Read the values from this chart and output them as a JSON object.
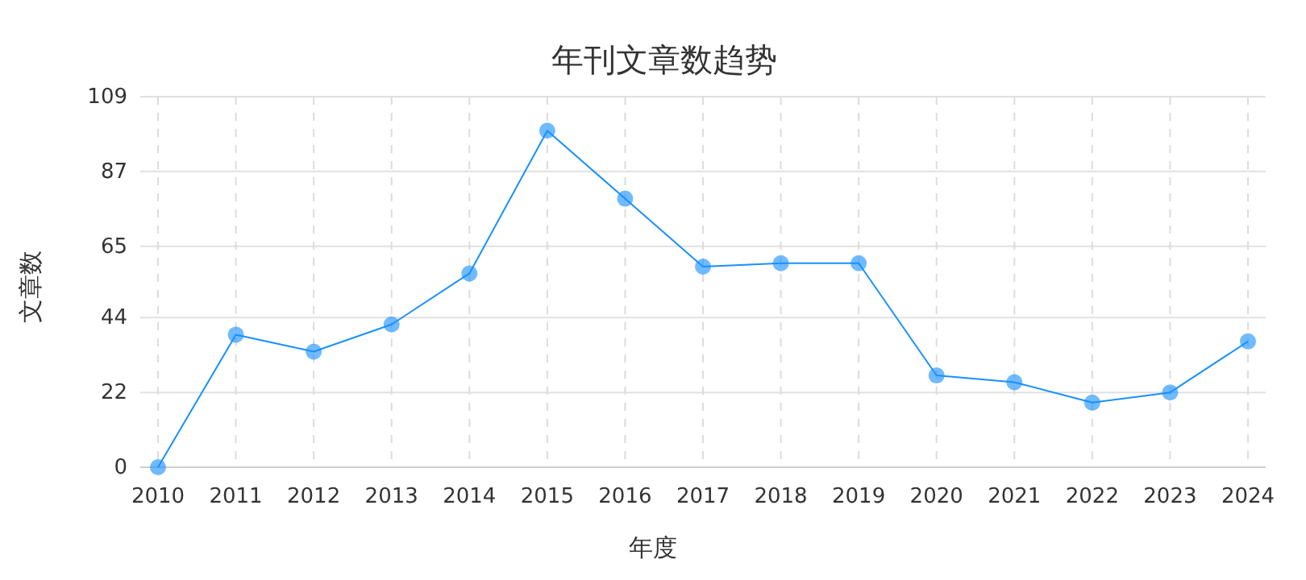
{
  "chart_data": {
    "type": "line",
    "title": "年刊文章数趋势",
    "xlabel": "年度",
    "ylabel": "文章数",
    "categories": [
      "2010",
      "2011",
      "2012",
      "2013",
      "2014",
      "2015",
      "2016",
      "2017",
      "2018",
      "2019",
      "2020",
      "2021",
      "2022",
      "2023",
      "2024"
    ],
    "series": [
      {
        "color": "#1890ff",
        "values": [
          0,
          39,
          34,
          42,
          57,
          99,
          79,
          59,
          60,
          60,
          27,
          25,
          19,
          22,
          37
        ]
      }
    ],
    "ylim": [
      0,
      109
    ],
    "yticks": [
      0,
      22,
      44,
      65,
      87,
      109
    ],
    "grid": true,
    "marker": "circle",
    "line_style": "solid"
  }
}
